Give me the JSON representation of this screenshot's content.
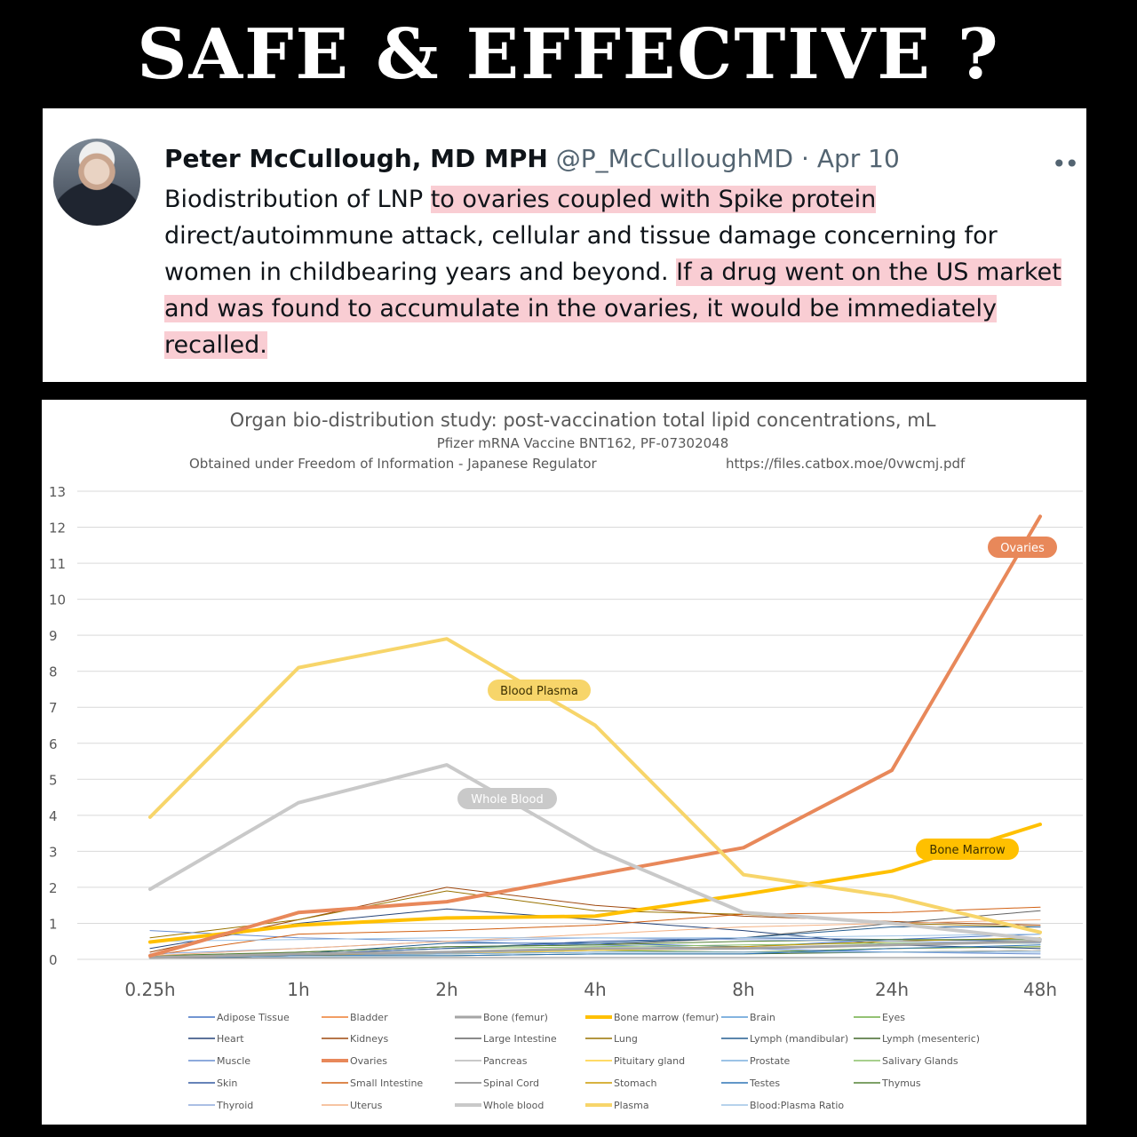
{
  "headline": "SAFE & EFFECTIVE ?",
  "tweet": {
    "name": "Peter McCullough, MD MPH",
    "handle": "@P_McCulloughMD",
    "separator": "·",
    "date": "Apr 10",
    "more": "••",
    "text_1": "Biodistribution of LNP ",
    "text_2_highlight": "to ovaries coupled with Spike protein",
    "text_3": " direct/autoimmune attack, cellular and tissue damage concerning for women in childbearing years and beyond. ",
    "text_4_highlight": " If a drug went on the US market and was found to accumulate in the ovaries, it would be immediately recalled.",
    "highlight_color": "#f9cdd3"
  },
  "chart_data": {
    "type": "line",
    "title": "Organ bio-distribution study: post-vaccination total lipid concentrations, mL",
    "subtitle": "Pfizer mRNA Vaccine BNT162, PF-07302048",
    "source_left": "Obtained under Freedom of Information - Japanese Regulator",
    "source_right": "https://files.catbox.moe/0vwcmj.pdf",
    "categories": [
      "0.25h",
      "1h",
      "2h",
      "4h",
      "8h",
      "24h",
      "48h"
    ],
    "yticks": [
      "0",
      "1",
      "2",
      "3",
      "4",
      "5",
      "6",
      "7",
      "8",
      "9",
      "10",
      "11",
      "12",
      "13"
    ],
    "ylim": [
      0,
      13
    ],
    "grid": true,
    "legend_position": "bottom",
    "series": [
      {
        "name": "Adipose Tissue",
        "color": "#4472c4",
        "width": 1,
        "values": [
          0.06,
          0.15,
          0.3,
          0.45,
          0.35,
          0.55,
          0.7
        ]
      },
      {
        "name": "Bladder",
        "color": "#ed7d31",
        "width": 1,
        "values": [
          0.05,
          0.1,
          0.2,
          0.25,
          0.2,
          0.3,
          0.35
        ]
      },
      {
        "name": "Bone (femur)",
        "color": "#a5a5a5",
        "width": 3,
        "values": [
          0.05,
          0.15,
          0.2,
          0.3,
          0.3,
          0.4,
          0.5
        ]
      },
      {
        "name": "Bone marrow (femur)",
        "color": "#ffc000",
        "width": 4,
        "values": [
          0.48,
          0.95,
          1.15,
          1.2,
          1.8,
          2.45,
          3.75
        ]
      },
      {
        "name": "Brain",
        "color": "#5b9bd5",
        "width": 1,
        "values": [
          0.05,
          0.05,
          0.05,
          0.05,
          0.05,
          0.05,
          0.06
        ]
      },
      {
        "name": "Eyes",
        "color": "#70ad47",
        "width": 1,
        "values": [
          0.1,
          0.12,
          0.2,
          0.25,
          0.2,
          0.3,
          0.35
        ]
      },
      {
        "name": "Heart",
        "color": "#264478",
        "width": 1,
        "values": [
          0.3,
          1.0,
          1.4,
          1.1,
          0.8,
          0.4,
          0.3
        ]
      },
      {
        "name": "Kidneys",
        "color": "#9e480e",
        "width": 1,
        "values": [
          0.2,
          1.1,
          2.0,
          1.5,
          1.2,
          1.05,
          0.95
        ]
      },
      {
        "name": "Large Intestine",
        "color": "#636363",
        "width": 1,
        "values": [
          0.05,
          0.2,
          0.35,
          0.4,
          0.6,
          1.0,
          1.35
        ]
      },
      {
        "name": "Lung",
        "color": "#997300",
        "width": 1,
        "values": [
          0.6,
          1.1,
          1.9,
          1.35,
          1.25,
          1.0,
          0.9
        ]
      },
      {
        "name": "Lymph (mandibular)",
        "color": "#255e91",
        "width": 1,
        "values": [
          0.1,
          0.15,
          0.45,
          0.45,
          0.6,
          0.9,
          0.9
        ]
      },
      {
        "name": "Lymph (mesenteric)",
        "color": "#43682b",
        "width": 1,
        "values": [
          0.05,
          0.1,
          0.1,
          0.15,
          0.15,
          0.2,
          0.25
        ]
      },
      {
        "name": "Muscle",
        "color": "#698ed0",
        "width": 1,
        "values": [
          0.8,
          0.6,
          0.5,
          0.4,
          0.3,
          0.2,
          0.15
        ]
      },
      {
        "name": "Ovaries",
        "color": "#e8885a",
        "width": 4,
        "values": [
          0.1,
          1.3,
          1.6,
          2.35,
          3.1,
          5.25,
          12.3
        ]
      },
      {
        "name": "Pancreas",
        "color": "#b7b7b7",
        "width": 1,
        "values": [
          0.05,
          0.1,
          0.15,
          0.2,
          0.2,
          0.2,
          0.25
        ]
      },
      {
        "name": "Pituitary gland",
        "color": "#ffcd33",
        "width": 1,
        "values": [
          0.05,
          0.1,
          0.15,
          0.25,
          0.3,
          0.4,
          0.5
        ]
      },
      {
        "name": "Prostate",
        "color": "#7cafdd",
        "width": 1,
        "values": [
          0.05,
          0.1,
          0.15,
          0.2,
          0.2,
          0.2,
          0.2
        ]
      },
      {
        "name": "Salivary Glands",
        "color": "#8cc168",
        "width": 1,
        "values": [
          0.1,
          0.15,
          0.3,
          0.35,
          0.4,
          0.45,
          0.45
        ]
      },
      {
        "name": "Skin",
        "color": "#335aa1",
        "width": 1,
        "values": [
          0.05,
          0.15,
          0.3,
          0.5,
          0.6,
          0.55,
          0.5
        ]
      },
      {
        "name": "Small Intestine",
        "color": "#d26012",
        "width": 1,
        "values": [
          0.1,
          0.7,
          0.8,
          0.95,
          1.25,
          1.3,
          1.45
        ]
      },
      {
        "name": "Spinal Cord",
        "color": "#848484",
        "width": 1,
        "values": [
          0.03,
          0.04,
          0.05,
          0.05,
          0.05,
          0.05,
          0.05
        ]
      },
      {
        "name": "Stomach",
        "color": "#cc9a00",
        "width": 1,
        "values": [
          0.05,
          0.1,
          0.2,
          0.3,
          0.35,
          0.5,
          0.6
        ]
      },
      {
        "name": "Testes",
        "color": "#2e75b6",
        "width": 1,
        "values": [
          0.05,
          0.1,
          0.1,
          0.15,
          0.15,
          0.3,
          0.4
        ]
      },
      {
        "name": "Thymus",
        "color": "#548235",
        "width": 1,
        "values": [
          0.1,
          0.2,
          0.35,
          0.4,
          0.5,
          0.55,
          0.55
        ]
      },
      {
        "name": "Thyroid",
        "color": "#8faadc",
        "width": 1,
        "values": [
          0.15,
          0.3,
          0.5,
          0.6,
          0.55,
          0.5,
          0.45
        ]
      },
      {
        "name": "Uterus",
        "color": "#f4b183",
        "width": 1,
        "values": [
          0.1,
          0.3,
          0.5,
          0.7,
          0.9,
          1.0,
          1.1
        ]
      },
      {
        "name": "Whole blood",
        "color": "#c9c9c9",
        "width": 4,
        "values": [
          1.95,
          4.35,
          5.4,
          3.05,
          1.3,
          1.0,
          0.55
        ]
      },
      {
        "name": "Plasma",
        "color": "#f7d56a",
        "width": 4,
        "values": [
          3.95,
          8.1,
          8.9,
          6.5,
          2.35,
          1.75,
          0.75
        ]
      },
      {
        "name": "Blood:Plasma Ratio",
        "color": "#9dc3e6",
        "width": 1,
        "values": [
          0.5,
          0.55,
          0.6,
          0.6,
          0.6,
          0.65,
          0.7
        ]
      }
    ],
    "callouts": [
      {
        "label": "Ovaries",
        "bg": "#e8885a",
        "fg": "#ffffff"
      },
      {
        "label": "Blood Plasma",
        "bg": "#f7d56a",
        "fg": "#3b2f00"
      },
      {
        "label": "Whole Blood",
        "bg": "#c9c9c9",
        "fg": "#ffffff"
      },
      {
        "label": "Bone Marrow",
        "bg": "#ffc000",
        "fg": "#3b2f00"
      }
    ]
  }
}
